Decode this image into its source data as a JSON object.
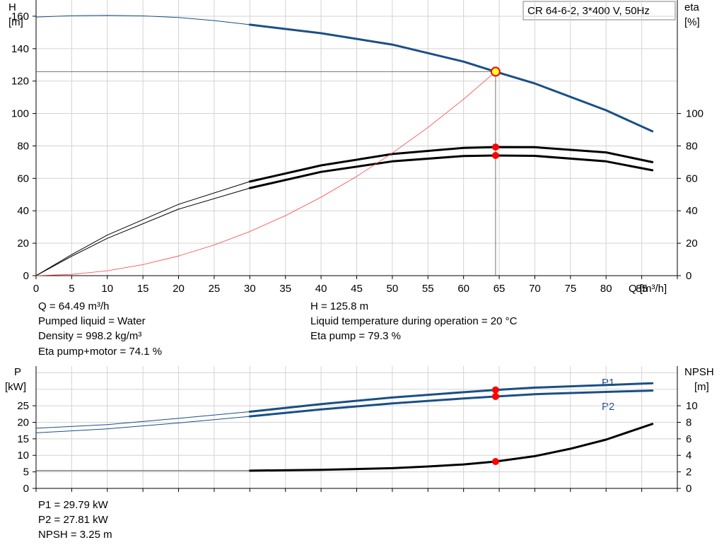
{
  "chart_data": [
    {
      "type": "line",
      "title": "CR 64-6-2, 3*400 V, 50Hz",
      "xlabel": "Q [m³/h]",
      "left_axis": {
        "label": "H",
        "unit": "[m]",
        "range": [
          0,
          170
        ],
        "ticks": [
          "0",
          "20",
          "40",
          "60",
          "80",
          "100",
          "120",
          "140",
          "160"
        ]
      },
      "right_axis": {
        "label": "eta",
        "unit": "[%]",
        "range": [
          0,
          170
        ],
        "ticks": [
          "0",
          "20",
          "40",
          "60",
          "80",
          "100"
        ]
      },
      "x_range": [
        0,
        90
      ],
      "x_ticks": [
        "0",
        "5",
        "10",
        "15",
        "20",
        "25",
        "30",
        "35",
        "40",
        "45",
        "50",
        "55",
        "60",
        "65",
        "70",
        "75",
        "80",
        "85"
      ],
      "grid": true,
      "series": [
        {
          "color": "#1a4f86",
          "axis": "left",
          "thin_until": 30,
          "x": [
            0,
            5,
            10,
            15,
            20,
            25,
            30,
            40,
            50,
            60,
            64.49,
            70,
            80,
            86.5
          ],
          "y": [
            159.5,
            160.3,
            160.5,
            160.2,
            159.2,
            157.3,
            154.8,
            149.5,
            142.5,
            132.0,
            125.8,
            118.5,
            102.0,
            89.0
          ]
        },
        {
          "color": "#000000",
          "axis": "right",
          "thin_until": 30,
          "x": [
            0,
            5,
            10,
            20,
            30,
            40,
            50,
            60,
            64.49,
            70,
            80,
            86.5
          ],
          "y": [
            0,
            13,
            25,
            44,
            58,
            68,
            75,
            78.8,
            79.3,
            79.2,
            76.0,
            70.0
          ]
        },
        {
          "color": "#000000",
          "axis": "right",
          "thin_until": 30,
          "x": [
            0,
            5,
            10,
            20,
            30,
            40,
            50,
            60,
            64.49,
            70,
            80,
            86.5
          ],
          "y": [
            0,
            12,
            23,
            41,
            54,
            64,
            70.5,
            73.8,
            74.1,
            73.9,
            70.5,
            65.0
          ]
        },
        {
          "color": "#ff4040",
          "axis": "left",
          "thin_until": 100,
          "width": 0.8,
          "x": [
            0,
            5,
            10,
            15,
            20,
            25,
            30,
            35,
            40,
            45,
            50,
            55,
            60,
            64.49
          ],
          "y": [
            0,
            0.8,
            3.0,
            6.8,
            12.1,
            18.9,
            27.2,
            37.0,
            48.4,
            61.2,
            75.6,
            91.4,
            108.8,
            125.8
          ]
        }
      ],
      "operating_point": {
        "q": 64.49,
        "h": 125.8,
        "eta_pump": 79.3,
        "eta_total": 74.1
      },
      "info_left": [
        "Q = 64.49 m³/h",
        "Pumped liquid = Water",
        "Density = 998.2 kg/m³",
        "Eta pump+motor = 74.1 %"
      ],
      "info_right": [
        "H = 125.8 m",
        "Liquid temperature during operation = 20 °C",
        "Eta pump = 79.3 %"
      ]
    },
    {
      "type": "line",
      "left_axis": {
        "label": "P",
        "unit": "[kW]",
        "range": [
          0,
          37
        ],
        "ticks": [
          "0",
          "5",
          "10",
          "15",
          "20",
          "25"
        ]
      },
      "right_axis": {
        "label": "NPSH",
        "unit": "[m]",
        "range": [
          0,
          14.8
        ],
        "ticks": [
          "0",
          "2",
          "4",
          "6",
          "8",
          "10"
        ]
      },
      "x_range": [
        0,
        90
      ],
      "grid": true,
      "series": [
        {
          "name": "P1",
          "color": "#1a4f86",
          "axis": "left",
          "thin_until": 30,
          "x": [
            0,
            10,
            20,
            30,
            40,
            50,
            60,
            64.49,
            70,
            80,
            86.5
          ],
          "y": [
            18.2,
            19.3,
            21.2,
            23.2,
            25.5,
            27.5,
            29.1,
            29.79,
            30.5,
            31.3,
            31.8
          ]
        },
        {
          "name": "P2",
          "color": "#1a4f86",
          "axis": "left",
          "thin_until": 30,
          "x": [
            0,
            10,
            20,
            30,
            40,
            50,
            60,
            64.49,
            70,
            80,
            86.5
          ],
          "y": [
            16.8,
            18.0,
            19.8,
            21.8,
            23.9,
            25.7,
            27.2,
            27.81,
            28.5,
            29.2,
            29.6
          ]
        },
        {
          "color": "#000000",
          "axis": "right",
          "thin_until": 30,
          "x": [
            0,
            30,
            40,
            50,
            55,
            60,
            64.49,
            70,
            75,
            80,
            86.5
          ],
          "y": [
            2.15,
            2.15,
            2.25,
            2.45,
            2.65,
            2.9,
            3.25,
            3.9,
            4.8,
            5.9,
            7.8
          ]
        }
      ],
      "operating_point": {
        "q": 64.49,
        "p1": 29.79,
        "p2": 27.81,
        "npsh": 3.25
      },
      "info": [
        "P1 = 29.79 kW",
        "P2 = 27.81 kW",
        "NPSH = 3.25 m"
      ]
    }
  ]
}
